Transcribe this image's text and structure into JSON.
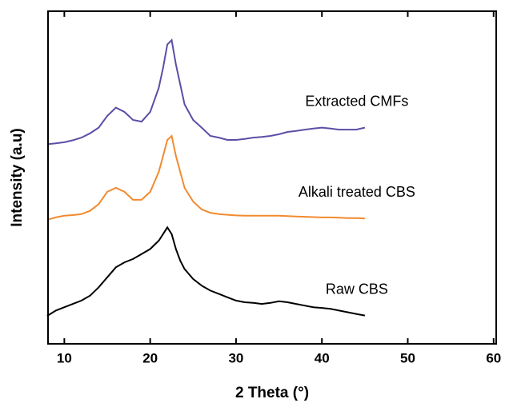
{
  "chart_data": {
    "type": "line",
    "xlabel": "2 Theta (°)",
    "ylabel": "Intensity (a.u)",
    "x": [
      8,
      9,
      10,
      11,
      12,
      13,
      14,
      15,
      16,
      17,
      18,
      19,
      20,
      21,
      21.5,
      22,
      22.5,
      23,
      23.5,
      24,
      25,
      26,
      27,
      28,
      29,
      30,
      31,
      32,
      33,
      34,
      35,
      36,
      37,
      38,
      39,
      40,
      41,
      42,
      43,
      44,
      45
    ],
    "series": [
      {
        "name": "Raw CBS",
        "color": "#000000",
        "values": [
          8.4,
          10,
          11,
          12,
          13,
          14.5,
          17,
          20,
          23,
          24.5,
          25.5,
          27,
          28.5,
          31,
          33,
          35,
          33,
          28.5,
          25,
          22.5,
          19.5,
          17.5,
          16,
          15,
          14,
          13,
          12.5,
          12.3,
          12,
          12.3,
          12.8,
          12.5,
          12,
          11.5,
          11,
          10.8,
          10.5,
          10,
          9.5,
          9,
          8.5
        ]
      },
      {
        "name": "Alkali treated CBS",
        "color": "#f28a2e",
        "values": [
          37.3,
          38,
          38.5,
          38.7,
          39,
          40,
          42,
          45.7,
          46.9,
          45.7,
          43.3,
          43.3,
          45.7,
          51.7,
          56.5,
          61.3,
          62.5,
          56.5,
          51.7,
          46.9,
          42.8,
          40.4,
          39.4,
          39,
          38.8,
          38.6,
          38.5,
          38.5,
          38.5,
          38.5,
          38.5,
          38.4,
          38.3,
          38.2,
          38.1,
          38,
          38,
          37.9,
          37.8,
          37.8,
          37.7
        ]
      },
      {
        "name": "Extracted CMFs",
        "color": "#5b4ea6",
        "values": [
          60,
          60.3,
          60.6,
          61.2,
          62,
          63.3,
          65,
          68.5,
          71,
          69.7,
          67.3,
          66.8,
          69.7,
          77,
          83,
          90,
          91.3,
          84,
          78,
          72,
          67.3,
          65,
          62.5,
          62,
          61.3,
          61.3,
          61.6,
          62,
          62.2,
          62.5,
          63,
          63.7,
          64,
          64.4,
          64.7,
          65,
          64.7,
          64.4,
          64.4,
          64.4,
          65
        ]
      }
    ],
    "xlim": [
      8.1,
      60.3
    ],
    "xticks": [
      10,
      20,
      30,
      40,
      50,
      60
    ],
    "ylim": [
      0,
      100
    ]
  }
}
